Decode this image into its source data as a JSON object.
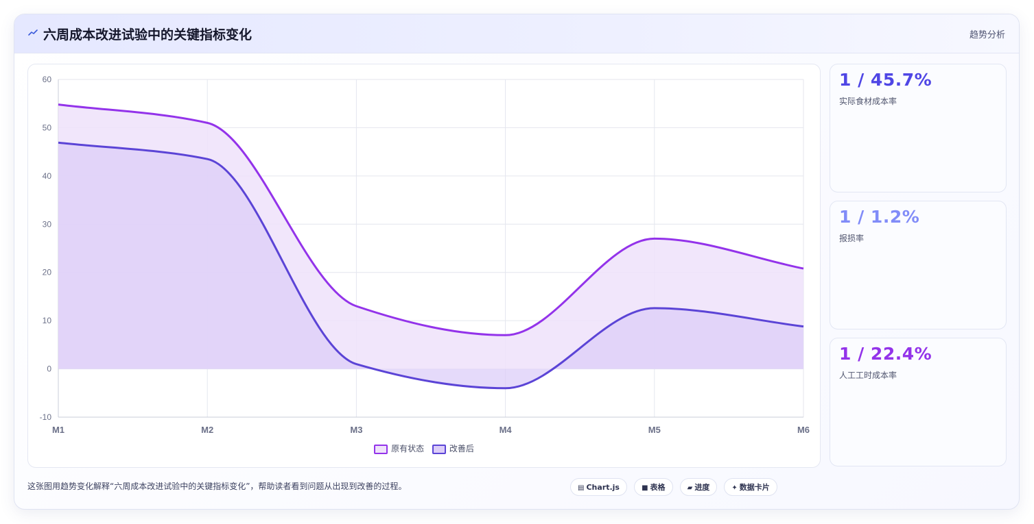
{
  "header": {
    "title": "六周成本改进试验中的关键指标变化",
    "badge": "趋势分析"
  },
  "chart_data": {
    "type": "area",
    "categories": [
      "M1",
      "M2",
      "M3",
      "M4",
      "M5",
      "M6"
    ],
    "ylim": [
      -10,
      60
    ],
    "yticks": [
      60,
      50,
      40,
      30,
      20,
      10,
      0,
      -10
    ],
    "grid": true,
    "legend_position": "bottom",
    "series": [
      {
        "name": "原有状态",
        "values": [
          54.8,
          51,
          13,
          7,
          27,
          20.8
        ],
        "color": "#9333ea",
        "fill": "#efe2fa"
      },
      {
        "name": "改善后",
        "values": [
          46.9,
          43.5,
          1,
          -4,
          12.6,
          8.8
        ],
        "color": "#5b44d6",
        "fill": "#dccdf8"
      }
    ]
  },
  "stats": [
    {
      "value": "1 / 45.7%",
      "label": "实际食材成本率",
      "color": "#4f46e5"
    },
    {
      "value": "1 / 1.2%",
      "label": "报损率",
      "color": "#818cf8"
    },
    {
      "value": "1 / 22.4%",
      "label": "人工工时成本率",
      "color": "#9333ea"
    }
  ],
  "footer": {
    "text": "这张图用趋势变化解释“六周成本改进试验中的关键指标变化”，帮助读者看到问题从出现到改善的过程。",
    "chips": [
      {
        "icon": "chart-icon",
        "glyph": "▤",
        "label": "Chart.js"
      },
      {
        "icon": "table-icon",
        "glyph": "■",
        "label": "表格"
      },
      {
        "icon": "progress-icon",
        "glyph": "▰",
        "label": "进度"
      },
      {
        "icon": "card-icon",
        "glyph": "✦",
        "label": "数据卡片"
      }
    ]
  }
}
